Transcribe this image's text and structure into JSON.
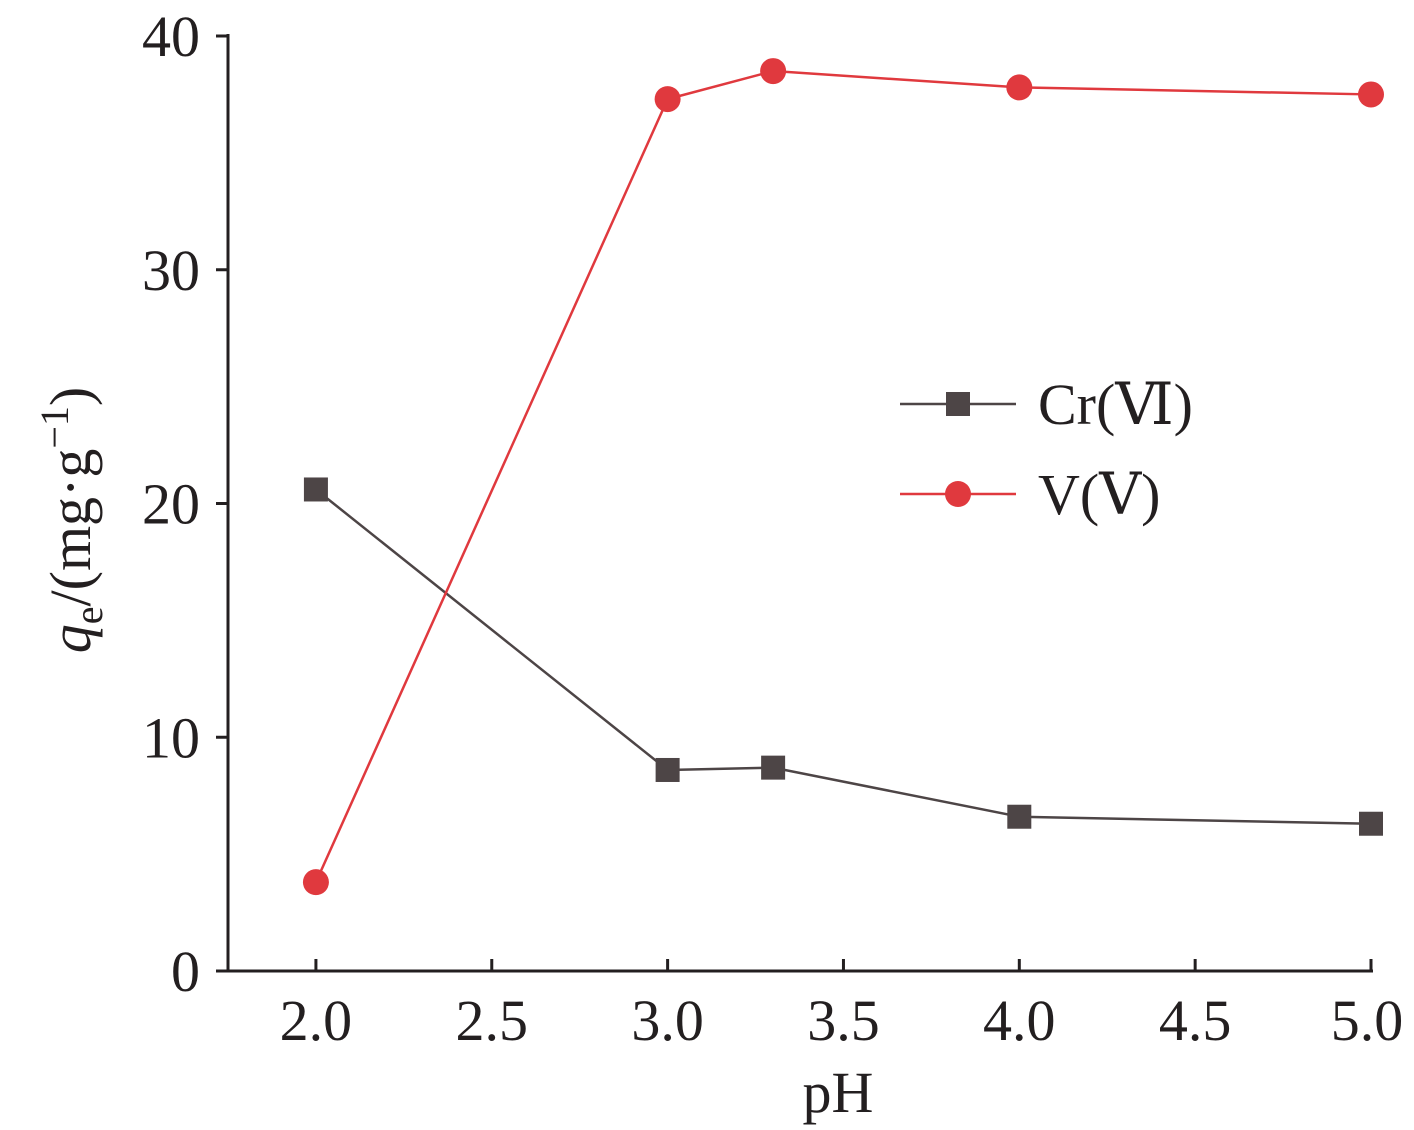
{
  "chart_data": {
    "type": "line",
    "xlabel": "pH",
    "ylabel": {
      "var": "q",
      "sub": "e",
      "unit_open": "/(mg·g",
      "sup": "−1",
      "unit_close": ")"
    },
    "xlim": [
      1.75,
      5.0
    ],
    "ylim": [
      0,
      40
    ],
    "xticks": [
      2.0,
      2.5,
      3.0,
      3.5,
      4.0,
      4.5,
      5.0
    ],
    "xtick_labels": [
      "2.0",
      "2.5",
      "3.0",
      "3.5",
      "4.0",
      "4.5",
      "5.0"
    ],
    "yticks": [
      0,
      10,
      20,
      30,
      40
    ],
    "ytick_labels": [
      "0",
      "10",
      "20",
      "30",
      "40"
    ],
    "grid": false,
    "legend_position": "center-right",
    "series": [
      {
        "name": "Cr(Ⅵ)",
        "marker": "square",
        "color": "#4d4546",
        "x": [
          2.0,
          3.0,
          3.3,
          4.0,
          5.0
        ],
        "y": [
          20.6,
          8.6,
          8.7,
          6.6,
          6.3
        ]
      },
      {
        "name": "V(Ⅴ)",
        "marker": "circle",
        "color": "#e0393e",
        "x": [
          2.0,
          3.0,
          3.3,
          4.0,
          5.0
        ],
        "y": [
          3.8,
          37.3,
          38.5,
          37.8,
          37.5
        ]
      }
    ]
  }
}
